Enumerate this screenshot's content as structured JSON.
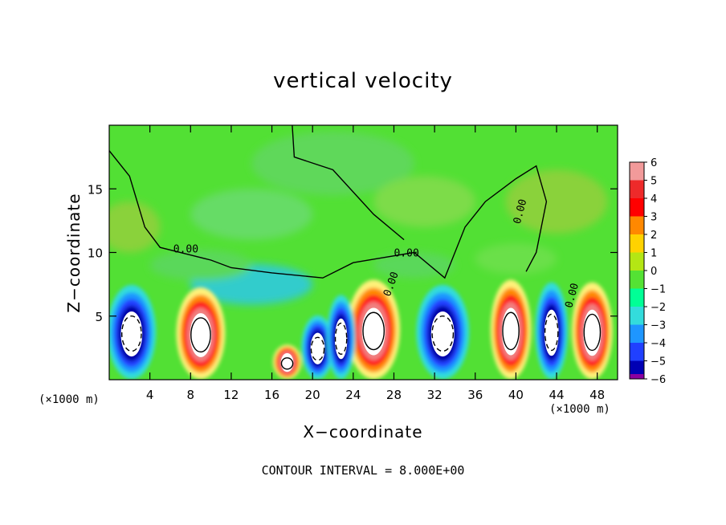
{
  "chart_data": {
    "type": "heatmap",
    "title": "vertical velocity",
    "xlabel": "X−coordinate",
    "ylabel": "Z−coordinate",
    "x_unit": "(×1000 m)",
    "y_unit": "",
    "x_ticks": [
      4,
      8,
      12,
      16,
      20,
      24,
      28,
      32,
      36,
      40,
      44,
      48
    ],
    "y_ticks": [
      5,
      10,
      15
    ],
    "xlim": [
      0,
      50
    ],
    "ylim": [
      0,
      20
    ],
    "colorbar": {
      "ticks": [
        "6",
        "5",
        "4",
        "3",
        "2",
        "1",
        "0",
        "−1",
        "−2",
        "−3",
        "−4",
        "−5",
        "−6"
      ],
      "colors": [
        "#f29a9a",
        "#ee2a2a",
        "#ff0000",
        "#ff8800",
        "#ffd200",
        "#b4e614",
        "#54e234",
        "#00ff96",
        "#33dcdc",
        "#1e96ff",
        "#2040ff",
        "#0000b4",
        "#8a00a0"
      ]
    },
    "contour_labels": [
      "0.00",
      "0.00",
      "0.00",
      "0.00",
      "0.00"
    ],
    "footnote": "CONTOUR INTERVAL = 8.000E+00",
    "updrafts": [
      {
        "x": 9.0,
        "z_top": 7.0,
        "width": 2.4,
        "strength": 6
      },
      {
        "x": 17.5,
        "z_top": 2.5,
        "width": 1.4,
        "strength": 4
      },
      {
        "x": 26.0,
        "z_top": 7.6,
        "width": 2.6,
        "strength": 6
      },
      {
        "x": 39.5,
        "z_top": 7.6,
        "width": 2.0,
        "strength": 6
      },
      {
        "x": 47.5,
        "z_top": 7.4,
        "width": 2.0,
        "strength": 6
      }
    ],
    "downdrafts": [
      {
        "x": 2.2,
        "z_top": 7.2,
        "width": 2.4,
        "strength": -6
      },
      {
        "x": 20.5,
        "z_top": 4.8,
        "width": 1.6,
        "strength": -6
      },
      {
        "x": 22.8,
        "z_top": 6.4,
        "width": 1.4,
        "strength": -6
      },
      {
        "x": 32.8,
        "z_top": 7.2,
        "width": 2.6,
        "strength": -6
      },
      {
        "x": 43.5,
        "z_top": 7.4,
        "width": 1.6,
        "strength": -6
      }
    ]
  }
}
